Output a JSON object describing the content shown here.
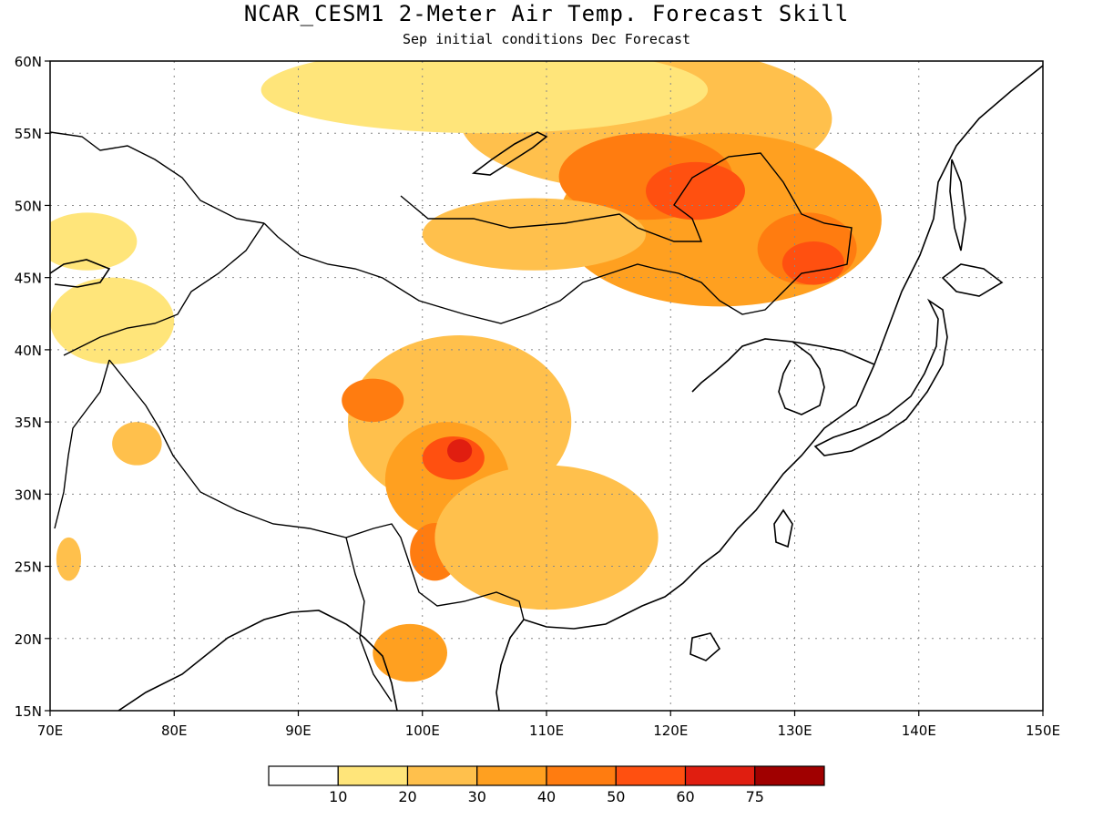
{
  "title": "NCAR_CESM1 2-Meter Air Temp. Forecast Skill",
  "subtitle": "Sep initial conditions  Dec Forecast",
  "chart_data": {
    "type": "heatmap",
    "x_range": [
      70,
      150
    ],
    "y_range": [
      15,
      60
    ],
    "x_ticks": [
      "70E",
      "80E",
      "90E",
      "100E",
      "110E",
      "120E",
      "130E",
      "140E",
      "150E"
    ],
    "y_ticks": [
      "15N",
      "20N",
      "25N",
      "30N",
      "35N",
      "40N",
      "45N",
      "50N",
      "55N",
      "60N"
    ],
    "grid": true,
    "colorbar": {
      "labels": [
        "10",
        "20",
        "30",
        "40",
        "50",
        "60",
        "75"
      ],
      "colors": [
        "#ffffff",
        "#ffe57a",
        "#ffc04c",
        "#ffa020",
        "#ff7c10",
        "#ff5010",
        "#e01e10",
        "#a00000"
      ]
    },
    "blobs": [
      {
        "lon": 118,
        "lat": 56,
        "rx": 15,
        "ry": 5,
        "level": 2
      },
      {
        "lon": 124,
        "lat": 49,
        "rx": 13,
        "ry": 6,
        "level": 3
      },
      {
        "lon": 118,
        "lat": 52,
        "rx": 7,
        "ry": 3,
        "level": 4
      },
      {
        "lon": 122,
        "lat": 51,
        "rx": 4,
        "ry": 2,
        "level": 5
      },
      {
        "lon": 131,
        "lat": 47,
        "rx": 4,
        "ry": 2.5,
        "level": 4
      },
      {
        "lon": 131.5,
        "lat": 46,
        "rx": 2.5,
        "ry": 1.5,
        "level": 5
      },
      {
        "lon": 109,
        "lat": 48,
        "rx": 9,
        "ry": 2.5,
        "level": 2
      },
      {
        "lon": 105,
        "lat": 58,
        "rx": 18,
        "ry": 3,
        "level": 1
      },
      {
        "lon": 103,
        "lat": 35,
        "rx": 9,
        "ry": 6,
        "level": 2
      },
      {
        "lon": 102,
        "lat": 31,
        "rx": 5,
        "ry": 4,
        "level": 3
      },
      {
        "lon": 102.5,
        "lat": 32.5,
        "rx": 2.5,
        "ry": 1.5,
        "level": 5
      },
      {
        "lon": 103,
        "lat": 33,
        "rx": 1,
        "ry": 0.8,
        "level": 6
      },
      {
        "lon": 101,
        "lat": 26,
        "rx": 2,
        "ry": 2,
        "level": 4
      },
      {
        "lon": 96,
        "lat": 36.5,
        "rx": 2.5,
        "ry": 1.5,
        "level": 4
      },
      {
        "lon": 110,
        "lat": 27,
        "rx": 9,
        "ry": 5,
        "level": 2
      },
      {
        "lon": 99,
        "lat": 19,
        "rx": 3,
        "ry": 2,
        "level": 3
      },
      {
        "lon": 75,
        "lat": 42,
        "rx": 5,
        "ry": 3,
        "level": 1
      },
      {
        "lon": 73,
        "lat": 47.5,
        "rx": 4,
        "ry": 2,
        "level": 1
      },
      {
        "lon": 77,
        "lat": 33.5,
        "rx": 2,
        "ry": 1.5,
        "level": 2
      },
      {
        "lon": 71.5,
        "lat": 25.5,
        "rx": 1,
        "ry": 1.5,
        "level": 2
      }
    ]
  }
}
